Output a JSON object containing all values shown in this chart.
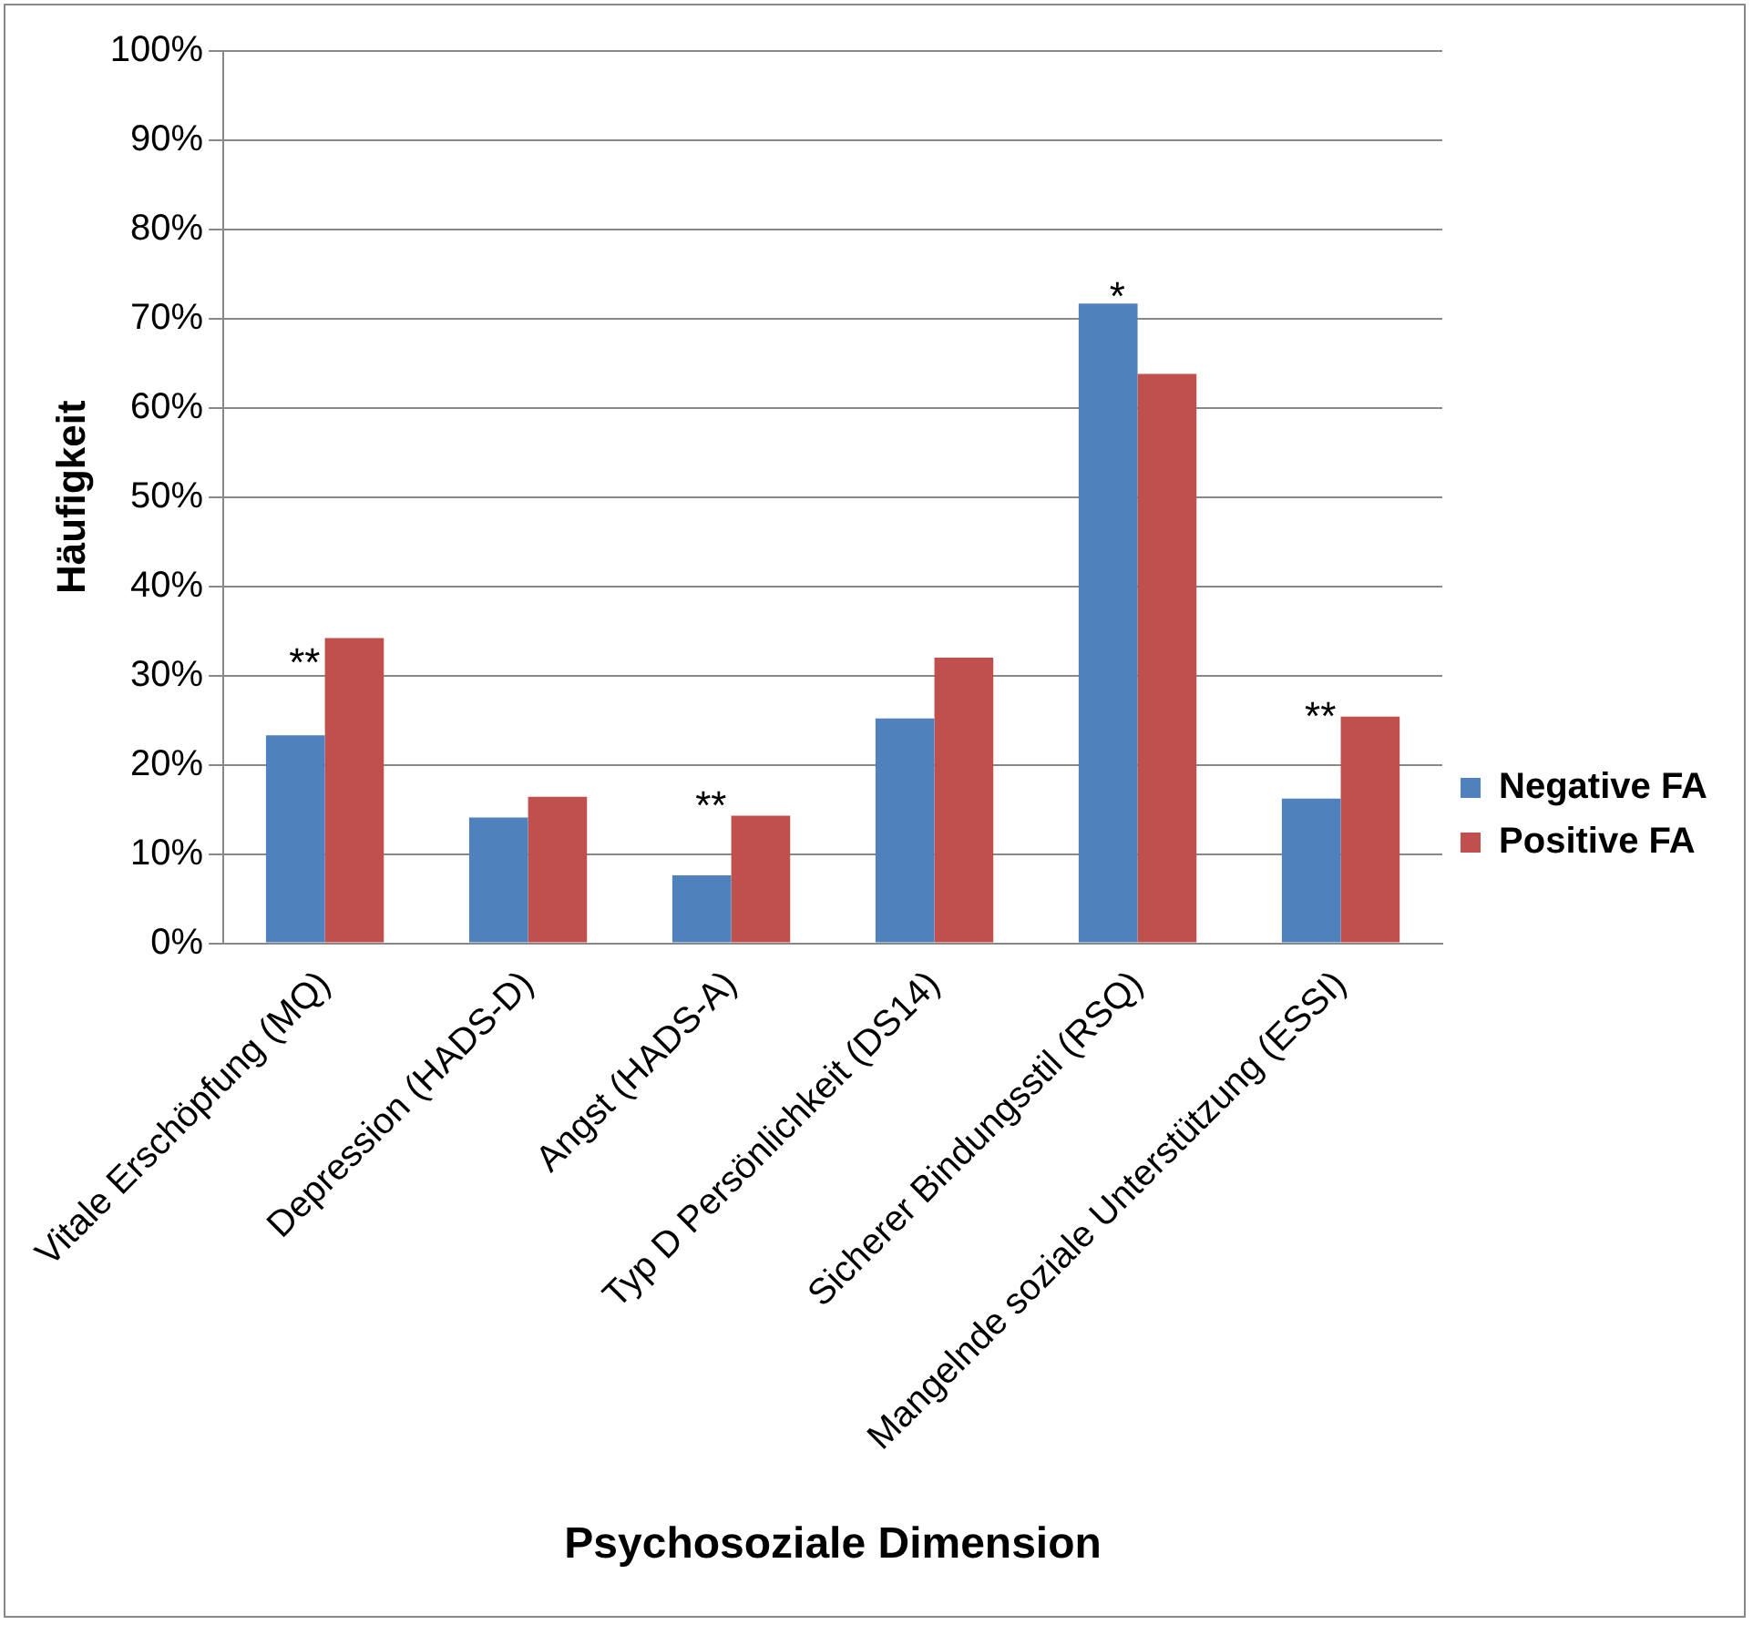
{
  "chart_data": {
    "type": "bar",
    "xlabel": "Psychosoziale Dimension",
    "ylabel": "Häufigkeit",
    "categories": [
      "Vitale Erschöpfung (MQ)",
      "Depression (HADS-D)",
      "Angst (HADS-A)",
      "Typ D Persönlichkeit (DS14)",
      "Sicherer Bindungsstil (RSQ)",
      "Mangelnde soziale Unterstützung (ESSI)"
    ],
    "series": [
      {
        "name": "Negative FA",
        "color": "#4f81bd",
        "values": [
          23.3,
          14.1,
          7.6,
          25.2,
          71.7,
          16.2
        ]
      },
      {
        "name": "Positive FA",
        "color": "#c0504d",
        "values": [
          34.2,
          16.4,
          14.3,
          32.0,
          63.8,
          25.4
        ]
      }
    ],
    "ylim": [
      0,
      100
    ],
    "yticks": [
      {
        "value": 0,
        "label": "0%"
      },
      {
        "value": 10,
        "label": "10%"
      },
      {
        "value": 20,
        "label": "20%"
      },
      {
        "value": 30,
        "label": "30%"
      },
      {
        "value": 40,
        "label": "40%"
      },
      {
        "value": 50,
        "label": "50%"
      },
      {
        "value": 60,
        "label": "60%"
      },
      {
        "value": 70,
        "label": "70%"
      },
      {
        "value": 80,
        "label": "80%"
      },
      {
        "value": 90,
        "label": "90%"
      },
      {
        "value": 100,
        "label": "100%"
      }
    ],
    "grid": "y",
    "legend": "right",
    "annotations": [
      {
        "text": "**",
        "x": "Vitale Erschöpfung (MQ)",
        "y": 31
      },
      {
        "text": "**",
        "x": "Angst (HADS-A)",
        "y": 15
      },
      {
        "text": "*",
        "x": "Sicherer Bindungsstil (RSQ)",
        "y": 72
      },
      {
        "text": "**",
        "x": "Mangelnde soziale Unterstützung (ESSI)",
        "y": 25
      }
    ]
  }
}
